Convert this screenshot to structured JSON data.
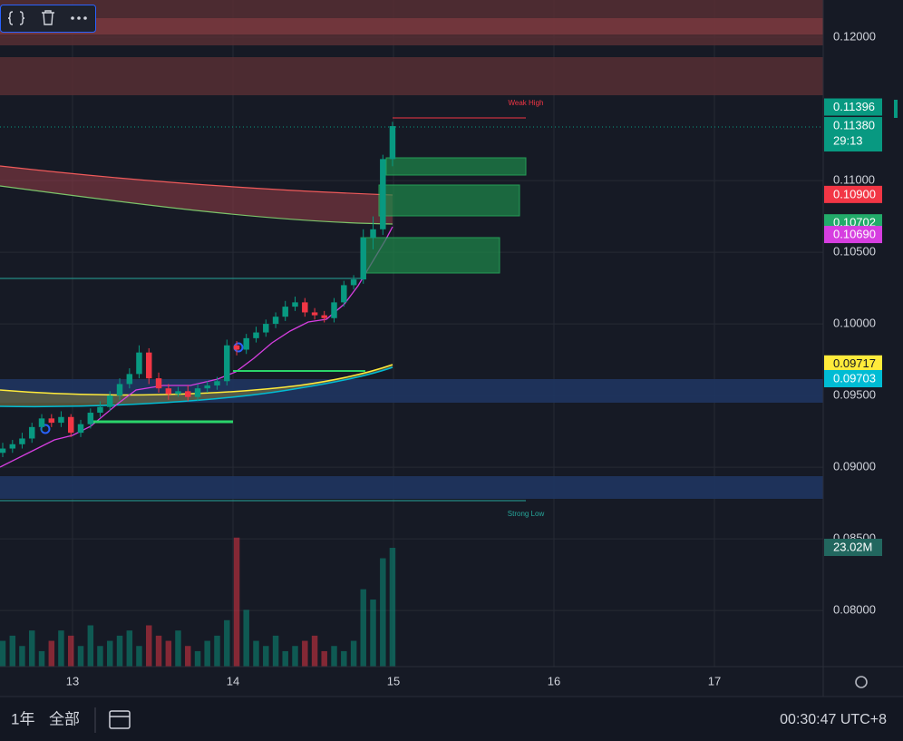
{
  "chart_data": {
    "type": "candlestick",
    "x": [
      12.565,
      12.626,
      12.686,
      12.747,
      12.808,
      12.869,
      12.929,
      12.99,
      13.051,
      13.112,
      13.172,
      13.233,
      13.294,
      13.355,
      13.415,
      13.476,
      13.537,
      13.598,
      13.658,
      13.719,
      13.78,
      13.84,
      13.901,
      13.962,
      14.023,
      14.083,
      14.144,
      14.205,
      14.266,
      14.326,
      14.387,
      14.448,
      14.509,
      14.569,
      14.63,
      14.691,
      14.752,
      14.812,
      14.873,
      14.934,
      14.994
    ],
    "open": [
      0.091,
      0.0913,
      0.0916,
      0.092,
      0.0928,
      0.0934,
      0.0931,
      0.0935,
      0.0924,
      0.093,
      0.0938,
      0.0942,
      0.095,
      0.0958,
      0.0965,
      0.098,
      0.0962,
      0.0955,
      0.0951,
      0.0953,
      0.0949,
      0.0955,
      0.0957,
      0.096,
      0.0985,
      0.0982,
      0.099,
      0.0994,
      0.1,
      0.1005,
      0.1012,
      0.1015,
      0.1008,
      0.1006,
      0.1004,
      0.1015,
      0.1027,
      0.1031,
      0.106,
      0.1066,
      0.1115
    ],
    "high": [
      0.0917,
      0.0919,
      0.0924,
      0.0931,
      0.0937,
      0.0937,
      0.0939,
      0.0937,
      0.0933,
      0.0941,
      0.0946,
      0.0953,
      0.0962,
      0.0969,
      0.0985,
      0.0983,
      0.0966,
      0.0958,
      0.0956,
      0.0957,
      0.0958,
      0.096,
      0.0963,
      0.0989,
      0.0988,
      0.0993,
      0.0998,
      0.1003,
      0.1008,
      0.1016,
      0.1019,
      0.1018,
      0.1011,
      0.1009,
      0.1018,
      0.103,
      0.1034,
      0.1066,
      0.1075,
      0.1118,
      0.1141
    ],
    "low": [
      0.0907,
      0.091,
      0.0913,
      0.0917,
      0.0925,
      0.0928,
      0.0928,
      0.0921,
      0.0921,
      0.0927,
      0.0935,
      0.0939,
      0.0947,
      0.0955,
      0.0962,
      0.0958,
      0.0952,
      0.0947,
      0.0949,
      0.0946,
      0.0946,
      0.0952,
      0.0954,
      0.0957,
      0.0978,
      0.0979,
      0.0987,
      0.0991,
      0.0997,
      0.1002,
      0.1009,
      0.1005,
      0.1003,
      0.1001,
      0.1001,
      0.1012,
      0.1024,
      0.1028,
      0.1052,
      0.1062,
      0.111
    ],
    "close": [
      0.0913,
      0.0916,
      0.092,
      0.0928,
      0.0934,
      0.0931,
      0.0935,
      0.0924,
      0.093,
      0.0938,
      0.0942,
      0.095,
      0.0958,
      0.0965,
      0.098,
      0.0962,
      0.0955,
      0.0951,
      0.0953,
      0.0949,
      0.0955,
      0.0957,
      0.096,
      0.0985,
      0.0982,
      0.099,
      0.0994,
      0.1,
      0.1005,
      0.1012,
      0.1015,
      0.1008,
      0.1006,
      0.1004,
      0.1015,
      0.1027,
      0.1031,
      0.106,
      0.1066,
      0.1115,
      0.1138
    ],
    "volume": [
      5,
      6,
      4,
      7,
      3,
      5,
      7,
      6,
      4,
      8,
      4,
      5,
      6,
      7,
      4,
      8,
      6,
      5,
      7,
      4,
      3,
      5,
      6,
      9,
      25,
      11,
      5,
      4,
      6,
      3,
      4,
      5,
      6,
      3,
      4,
      3,
      5,
      15,
      13,
      21,
      23.02
    ],
    "volume_label": "23.02M",
    "vlim": [
      0,
      40
    ],
    "up_color": "#089981",
    "down_color": "#f23645",
    "xlim": [
      12.548,
      17.678
    ],
    "xticks": [
      13,
      14,
      15,
      16,
      17
    ],
    "ylim": [
      0.07608,
      0.1226
    ],
    "yticks": [
      {
        "value": 0.12,
        "label": "0.12000"
      },
      {
        "value": 0.11,
        "label": "0.11000"
      },
      {
        "value": 0.105,
        "label": "0.10500"
      },
      {
        "value": 0.1,
        "label": "0.10000"
      },
      {
        "value": 0.095,
        "label": "0.09500"
      },
      {
        "value": 0.09,
        "label": "0.09000"
      },
      {
        "value": 0.085,
        "label": "0.08500"
      },
      {
        "value": 0.08,
        "label": "0.08000"
      }
    ],
    "grid": true,
    "price_labels": [
      {
        "value": 0.11396,
        "label": "0.11396",
        "color": "#089981"
      },
      {
        "value": 0.1138,
        "label": "0.11380",
        "color": "#089981"
      },
      {
        "value": 0.109,
        "label": "0.10900",
        "color": "#f23645"
      },
      {
        "value": 0.10702,
        "label": "0.10702",
        "color": "#22ab6a"
      },
      {
        "value": 0.1069,
        "label": "0.10690",
        "color": "#d63ee0"
      },
      {
        "value": 0.09717,
        "label": "0.09717",
        "color": "#ffeb3b"
      },
      {
        "value": 0.09703,
        "label": "0.09703",
        "color": "#00bcd4"
      }
    ],
    "countdown": "29:13",
    "annotations": [
      "Weak High",
      "Strong Low"
    ]
  },
  "bottom_bar": {
    "range": "1年",
    "all": "全部",
    "time": "00:30:47 UTC+8"
  }
}
